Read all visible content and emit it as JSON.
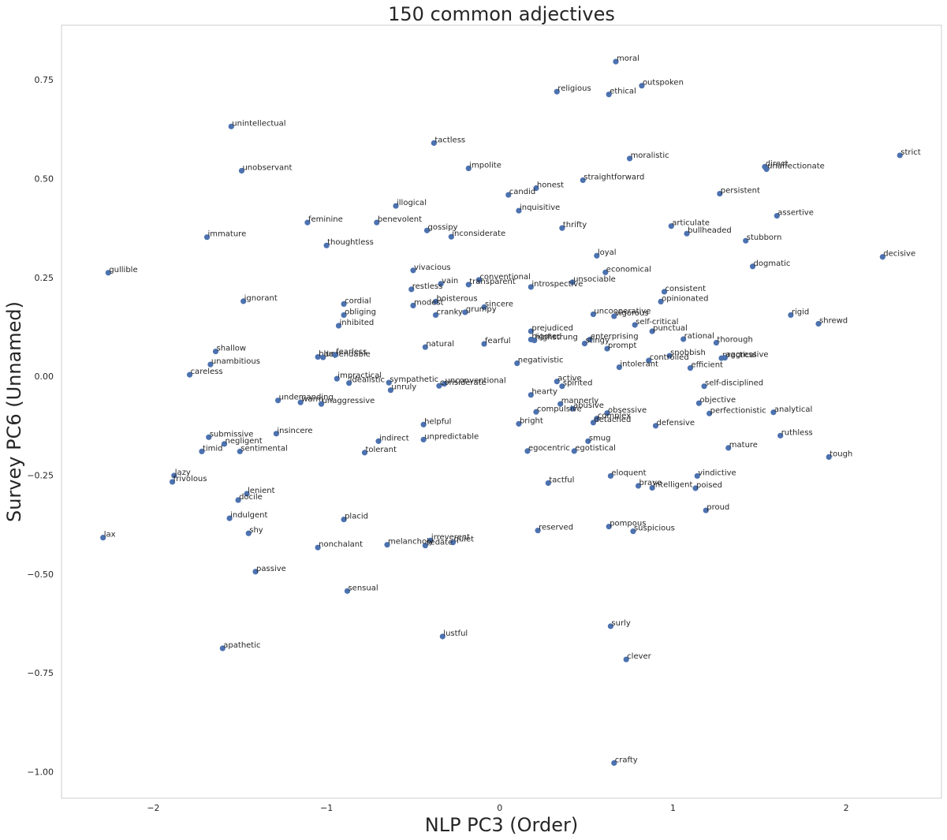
{
  "chart_data": {
    "type": "scatter",
    "title": "150 common adjectives",
    "xlabel": "NLP PC3 (Order)",
    "ylabel": "Survey PC6 (Unnamed)",
    "xlim": [
      -2.53,
      2.55
    ],
    "ylim": [
      -1.067,
      0.888
    ],
    "xticks": [
      -2,
      -1,
      0,
      1,
      2
    ],
    "xtick_labels": [
      "−2",
      "−1",
      "0",
      "1",
      "2"
    ],
    "yticks": [
      0.75,
      0.5,
      0.25,
      0.0,
      -0.25,
      -0.5,
      -0.75,
      -1.0
    ],
    "ytick_labels": [
      "0.75",
      "0.50",
      "0.25",
      "0.00",
      "−0.25",
      "−0.50",
      "−0.75",
      "−1.00"
    ],
    "grid": false,
    "points": [
      {
        "label": "moral",
        "x": 0.67,
        "y": 0.796
      },
      {
        "label": "outspoken",
        "x": 0.82,
        "y": 0.735
      },
      {
        "label": "religious",
        "x": 0.33,
        "y": 0.72
      },
      {
        "label": "ethical",
        "x": 0.63,
        "y": 0.713
      },
      {
        "label": "unintellectual",
        "x": -1.55,
        "y": 0.632
      },
      {
        "label": "tactless",
        "x": -0.38,
        "y": 0.59
      },
      {
        "label": "strict",
        "x": 2.31,
        "y": 0.559
      },
      {
        "label": "moralistic",
        "x": 0.75,
        "y": 0.551
      },
      {
        "label": "direct",
        "x": 1.53,
        "y": 0.53
      },
      {
        "label": "unobservant",
        "x": -1.49,
        "y": 0.52
      },
      {
        "label": "impolite",
        "x": -0.18,
        "y": 0.526
      },
      {
        "label": "unaffectionate",
        "x": 1.54,
        "y": 0.524
      },
      {
        "label": "straightforward",
        "x": 0.48,
        "y": 0.496
      },
      {
        "label": "honest",
        "x": 0.21,
        "y": 0.476
      },
      {
        "label": "candid",
        "x": 0.05,
        "y": 0.459
      },
      {
        "label": "persistent",
        "x": 1.27,
        "y": 0.462
      },
      {
        "label": "illogical",
        "x": -0.6,
        "y": 0.431
      },
      {
        "label": "inquisitive",
        "x": 0.11,
        "y": 0.419
      },
      {
        "label": "assertive",
        "x": 1.6,
        "y": 0.406
      },
      {
        "label": "feminine",
        "x": -1.11,
        "y": 0.389
      },
      {
        "label": "benevolent",
        "x": -0.71,
        "y": 0.389
      },
      {
        "label": "articulate",
        "x": 0.99,
        "y": 0.38
      },
      {
        "label": "thrifty",
        "x": 0.36,
        "y": 0.375
      },
      {
        "label": "gossipy",
        "x": -0.42,
        "y": 0.369
      },
      {
        "label": "bullheaded",
        "x": 1.08,
        "y": 0.361
      },
      {
        "label": "immature",
        "x": -1.69,
        "y": 0.352
      },
      {
        "label": "inconsiderate",
        "x": -0.28,
        "y": 0.353
      },
      {
        "label": "stubborn",
        "x": 1.42,
        "y": 0.343
      },
      {
        "label": "thoughtless",
        "x": -1.0,
        "y": 0.331
      },
      {
        "label": "decisive",
        "x": 2.21,
        "y": 0.302
      },
      {
        "label": "loyal",
        "x": 0.56,
        "y": 0.305
      },
      {
        "label": "dogmatic",
        "x": 1.46,
        "y": 0.278
      },
      {
        "label": "vivacious",
        "x": -0.5,
        "y": 0.268
      },
      {
        "label": "gullible",
        "x": -2.26,
        "y": 0.262
      },
      {
        "label": "economical",
        "x": 0.61,
        "y": 0.263
      },
      {
        "label": "conventional",
        "x": -0.12,
        "y": 0.244
      },
      {
        "label": "transparent",
        "x": -0.18,
        "y": 0.232
      },
      {
        "label": "vain",
        "x": -0.34,
        "y": 0.234
      },
      {
        "label": "unsociable",
        "x": 0.42,
        "y": 0.238
      },
      {
        "label": "introspective",
        "x": 0.18,
        "y": 0.226
      },
      {
        "label": "restless",
        "x": -0.51,
        "y": 0.22
      },
      {
        "label": "consistent",
        "x": 0.95,
        "y": 0.214
      },
      {
        "label": "ignorant",
        "x": -1.48,
        "y": 0.19
      },
      {
        "label": "opinionated",
        "x": 0.93,
        "y": 0.189
      },
      {
        "label": "boisterous",
        "x": -0.37,
        "y": 0.189
      },
      {
        "label": "cordial",
        "x": -0.9,
        "y": 0.183
      },
      {
        "label": "modest",
        "x": -0.5,
        "y": 0.179
      },
      {
        "label": "sincere",
        "x": -0.09,
        "y": 0.175
      },
      {
        "label": "grumpy",
        "x": -0.2,
        "y": 0.162
      },
      {
        "label": "obliging",
        "x": -0.9,
        "y": 0.155
      },
      {
        "label": "cranky",
        "x": -0.37,
        "y": 0.155
      },
      {
        "label": "uncooperative",
        "x": 0.54,
        "y": 0.157
      },
      {
        "label": "vigorous",
        "x": 0.66,
        "y": 0.152
      },
      {
        "label": "rigid",
        "x": 1.68,
        "y": 0.155
      },
      {
        "label": "shrewd",
        "x": 1.84,
        "y": 0.133
      },
      {
        "label": "self-critical",
        "x": 0.78,
        "y": 0.13
      },
      {
        "label": "inhibited",
        "x": -0.93,
        "y": 0.128
      },
      {
        "label": "punctual",
        "x": 0.88,
        "y": 0.114
      },
      {
        "label": "prejudiced",
        "x": 0.18,
        "y": 0.114
      },
      {
        "label": "rational",
        "x": 1.06,
        "y": 0.094
      },
      {
        "label": "bigoted",
        "x": 0.18,
        "y": 0.093
      },
      {
        "label": "highstrung",
        "x": 0.2,
        "y": 0.091
      },
      {
        "label": "enterprising",
        "x": 0.52,
        "y": 0.093
      },
      {
        "label": "stingy",
        "x": 0.49,
        "y": 0.083
      },
      {
        "label": "thorough",
        "x": 1.25,
        "y": 0.085
      },
      {
        "label": "fearful",
        "x": -0.09,
        "y": 0.082
      },
      {
        "label": "natural",
        "x": -0.43,
        "y": 0.074
      },
      {
        "label": "prompt",
        "x": 0.62,
        "y": 0.07
      },
      {
        "label": "shallow",
        "x": -1.64,
        "y": 0.063
      },
      {
        "label": "snobbish",
        "x": 0.98,
        "y": 0.052
      },
      {
        "label": "practical",
        "x": 1.28,
        "y": 0.046
      },
      {
        "label": "aggressive",
        "x": 1.3,
        "y": 0.047
      },
      {
        "label": "blunt",
        "x": -1.05,
        "y": 0.049
      },
      {
        "label": "dependable",
        "x": -1.02,
        "y": 0.048
      },
      {
        "label": "fearless",
        "x": -0.95,
        "y": 0.054
      },
      {
        "label": "controlled",
        "x": 0.86,
        "y": 0.04
      },
      {
        "label": "unambitious",
        "x": -1.67,
        "y": 0.03
      },
      {
        "label": "negativistic",
        "x": 0.1,
        "y": 0.033
      },
      {
        "label": "intolerant",
        "x": 0.69,
        "y": 0.023
      },
      {
        "label": "efficient",
        "x": 1.1,
        "y": 0.021
      },
      {
        "label": "careless",
        "x": -1.79,
        "y": 0.004
      },
      {
        "label": "impractical",
        "x": -0.94,
        "y": -0.006
      },
      {
        "label": "active",
        "x": 0.33,
        "y": -0.013
      },
      {
        "label": "sympathetic",
        "x": -0.64,
        "y": -0.016
      },
      {
        "label": "idealistic",
        "x": -0.87,
        "y": -0.017
      },
      {
        "label": "unconventional",
        "x": -0.32,
        "y": -0.019
      },
      {
        "label": "considerate",
        "x": -0.35,
        "y": -0.024
      },
      {
        "label": "spirited",
        "x": 0.36,
        "y": -0.025
      },
      {
        "label": "self-disciplined",
        "x": 1.18,
        "y": -0.025
      },
      {
        "label": "unruly",
        "x": -0.63,
        "y": -0.035
      },
      {
        "label": "hearty",
        "x": 0.18,
        "y": -0.047
      },
      {
        "label": "undemanding",
        "x": -1.28,
        "y": -0.061
      },
      {
        "label": "warm",
        "x": -1.15,
        "y": -0.066
      },
      {
        "label": "unaggressive",
        "x": -1.03,
        "y": -0.07
      },
      {
        "label": "objective",
        "x": 1.15,
        "y": -0.068
      },
      {
        "label": "mannerly",
        "x": 0.35,
        "y": -0.07
      },
      {
        "label": "abusive",
        "x": 0.42,
        "y": -0.082
      },
      {
        "label": "compulsive",
        "x": 0.21,
        "y": -0.09
      },
      {
        "label": "analytical",
        "x": 1.58,
        "y": -0.091
      },
      {
        "label": "obsessive",
        "x": 0.62,
        "y": -0.093
      },
      {
        "label": "perfectionistic",
        "x": 1.21,
        "y": -0.094
      },
      {
        "label": "complex",
        "x": 0.56,
        "y": -0.107
      },
      {
        "label": "detached",
        "x": 0.54,
        "y": -0.117
      },
      {
        "label": "helpful",
        "x": -0.44,
        "y": -0.122
      },
      {
        "label": "bright",
        "x": 0.11,
        "y": -0.12
      },
      {
        "label": "defensive",
        "x": 0.9,
        "y": -0.125
      },
      {
        "label": "insincere",
        "x": -1.29,
        "y": -0.145
      },
      {
        "label": "submissive",
        "x": -1.68,
        "y": -0.154
      },
      {
        "label": "ruthless",
        "x": 1.62,
        "y": -0.15
      },
      {
        "label": "indirect",
        "x": -0.7,
        "y": -0.164
      },
      {
        "label": "unpredictable",
        "x": -0.44,
        "y": -0.16
      },
      {
        "label": "smug",
        "x": 0.51,
        "y": -0.164
      },
      {
        "label": "negligent",
        "x": -1.59,
        "y": -0.171
      },
      {
        "label": "sentimental",
        "x": -1.5,
        "y": -0.19
      },
      {
        "label": "timid",
        "x": -1.72,
        "y": -0.19
      },
      {
        "label": "mature",
        "x": 1.32,
        "y": -0.181
      },
      {
        "label": "egocentric",
        "x": 0.16,
        "y": -0.189
      },
      {
        "label": "egotistical",
        "x": 0.43,
        "y": -0.189
      },
      {
        "label": "tolerant",
        "x": -0.78,
        "y": -0.193
      },
      {
        "label": "tough",
        "x": 1.9,
        "y": -0.204
      },
      {
        "label": "eloquent",
        "x": 0.64,
        "y": -0.252
      },
      {
        "label": "vindictive",
        "x": 1.14,
        "y": -0.252
      },
      {
        "label": "lazy",
        "x": -1.88,
        "y": -0.251
      },
      {
        "label": "frivolous",
        "x": -1.89,
        "y": -0.267
      },
      {
        "label": "tactful",
        "x": 0.28,
        "y": -0.27
      },
      {
        "label": "brave",
        "x": 0.8,
        "y": -0.277
      },
      {
        "label": "intelligent",
        "x": 0.88,
        "y": -0.282
      },
      {
        "label": "poised",
        "x": 1.13,
        "y": -0.283
      },
      {
        "label": "lenient",
        "x": -1.46,
        "y": -0.297
      },
      {
        "label": "docile",
        "x": -1.51,
        "y": -0.313
      },
      {
        "label": "proud",
        "x": 1.19,
        "y": -0.339
      },
      {
        "label": "indulgent",
        "x": -1.56,
        "y": -0.359
      },
      {
        "label": "placid",
        "x": -0.9,
        "y": -0.362
      },
      {
        "label": "pompous",
        "x": 0.63,
        "y": -0.38
      },
      {
        "label": "reserved",
        "x": 0.22,
        "y": -0.39
      },
      {
        "label": "suspicious",
        "x": 0.77,
        "y": -0.392
      },
      {
        "label": "shy",
        "x": -1.45,
        "y": -0.397
      },
      {
        "label": "lax",
        "x": -2.29,
        "y": -0.408
      },
      {
        "label": "irreverent",
        "x": -0.4,
        "y": -0.415
      },
      {
        "label": "quiet",
        "x": -0.27,
        "y": -0.42
      },
      {
        "label": "sedate",
        "x": -0.43,
        "y": -0.428
      },
      {
        "label": "melancholy",
        "x": -0.65,
        "y": -0.426
      },
      {
        "label": "nonchalant",
        "x": -1.05,
        "y": -0.433
      },
      {
        "label": "passive",
        "x": -1.41,
        "y": -0.494
      },
      {
        "label": "sensual",
        "x": -0.88,
        "y": -0.543
      },
      {
        "label": "surly",
        "x": 0.64,
        "y": -0.632
      },
      {
        "label": "lustful",
        "x": -0.33,
        "y": -0.658
      },
      {
        "label": "apathetic",
        "x": -1.6,
        "y": -0.688
      },
      {
        "label": "clever",
        "x": 0.73,
        "y": -0.716
      },
      {
        "label": "crafty",
        "x": 0.66,
        "y": -0.978
      }
    ]
  }
}
